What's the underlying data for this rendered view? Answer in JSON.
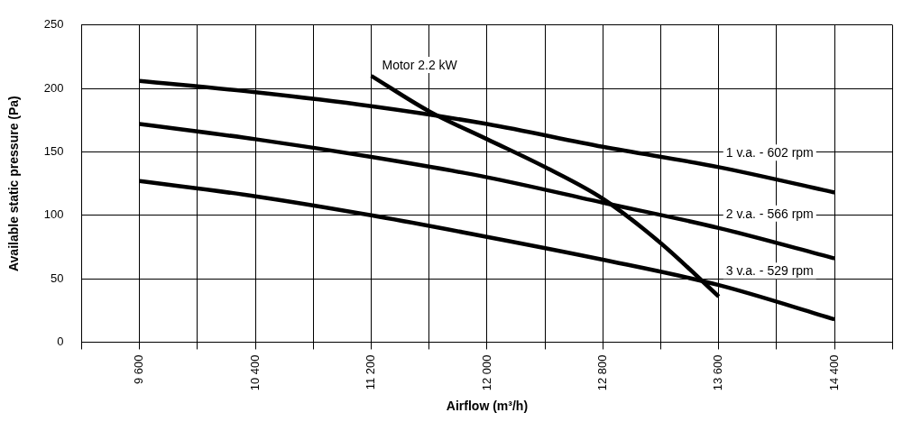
{
  "chart_data": {
    "type": "line",
    "xlabel": "Airflow (m³/h)",
    "ylabel": "Available static pressure (Pa)",
    "x": [
      9600,
      10400,
      11200,
      12000,
      12800,
      13600,
      14400
    ],
    "xlim": [
      9200,
      14800
    ],
    "xticks": [
      {
        "value": 9200,
        "label": null
      },
      {
        "value": 9600,
        "label": "9 600"
      },
      {
        "value": 10000,
        "label": null
      },
      {
        "value": 10400,
        "label": "10 400"
      },
      {
        "value": 10800,
        "label": null
      },
      {
        "value": 11200,
        "label": "11 200"
      },
      {
        "value": 11600,
        "label": null
      },
      {
        "value": 12000,
        "label": "12 000"
      },
      {
        "value": 12400,
        "label": null
      },
      {
        "value": 12800,
        "label": "12 800"
      },
      {
        "value": 13200,
        "label": null
      },
      {
        "value": 13600,
        "label": "13 600"
      },
      {
        "value": 14000,
        "label": null
      },
      {
        "value": 14400,
        "label": "14 400"
      },
      {
        "value": 14800,
        "label": null
      }
    ],
    "ylim": [
      0,
      250
    ],
    "yticks": [
      0,
      50,
      100,
      150,
      200,
      250
    ],
    "series": [
      {
        "name": "1 v.a. - 602 rpm",
        "color": "#000000",
        "values": [
          206,
          197,
          186,
          172,
          154,
          138,
          118
        ]
      },
      {
        "name": "2 v.a. - 566 rpm",
        "color": "#000000",
        "values": [
          172,
          160,
          146,
          130,
          110,
          90,
          66
        ]
      },
      {
        "name": "3 v.a. - 529 rpm",
        "color": "#000000",
        "values": [
          127,
          115,
          100,
          83,
          65,
          45,
          18
        ]
      },
      {
        "name": "Motor 2.2 kW",
        "color": "#000000",
        "x": [
          11200,
          11600,
          12000,
          12400,
          12800,
          13200,
          13600
        ],
        "values": [
          210,
          182,
          160,
          138,
          113,
          78,
          36
        ]
      }
    ],
    "grid": true,
    "legend": false,
    "marker": "none",
    "line_style": "solid"
  }
}
